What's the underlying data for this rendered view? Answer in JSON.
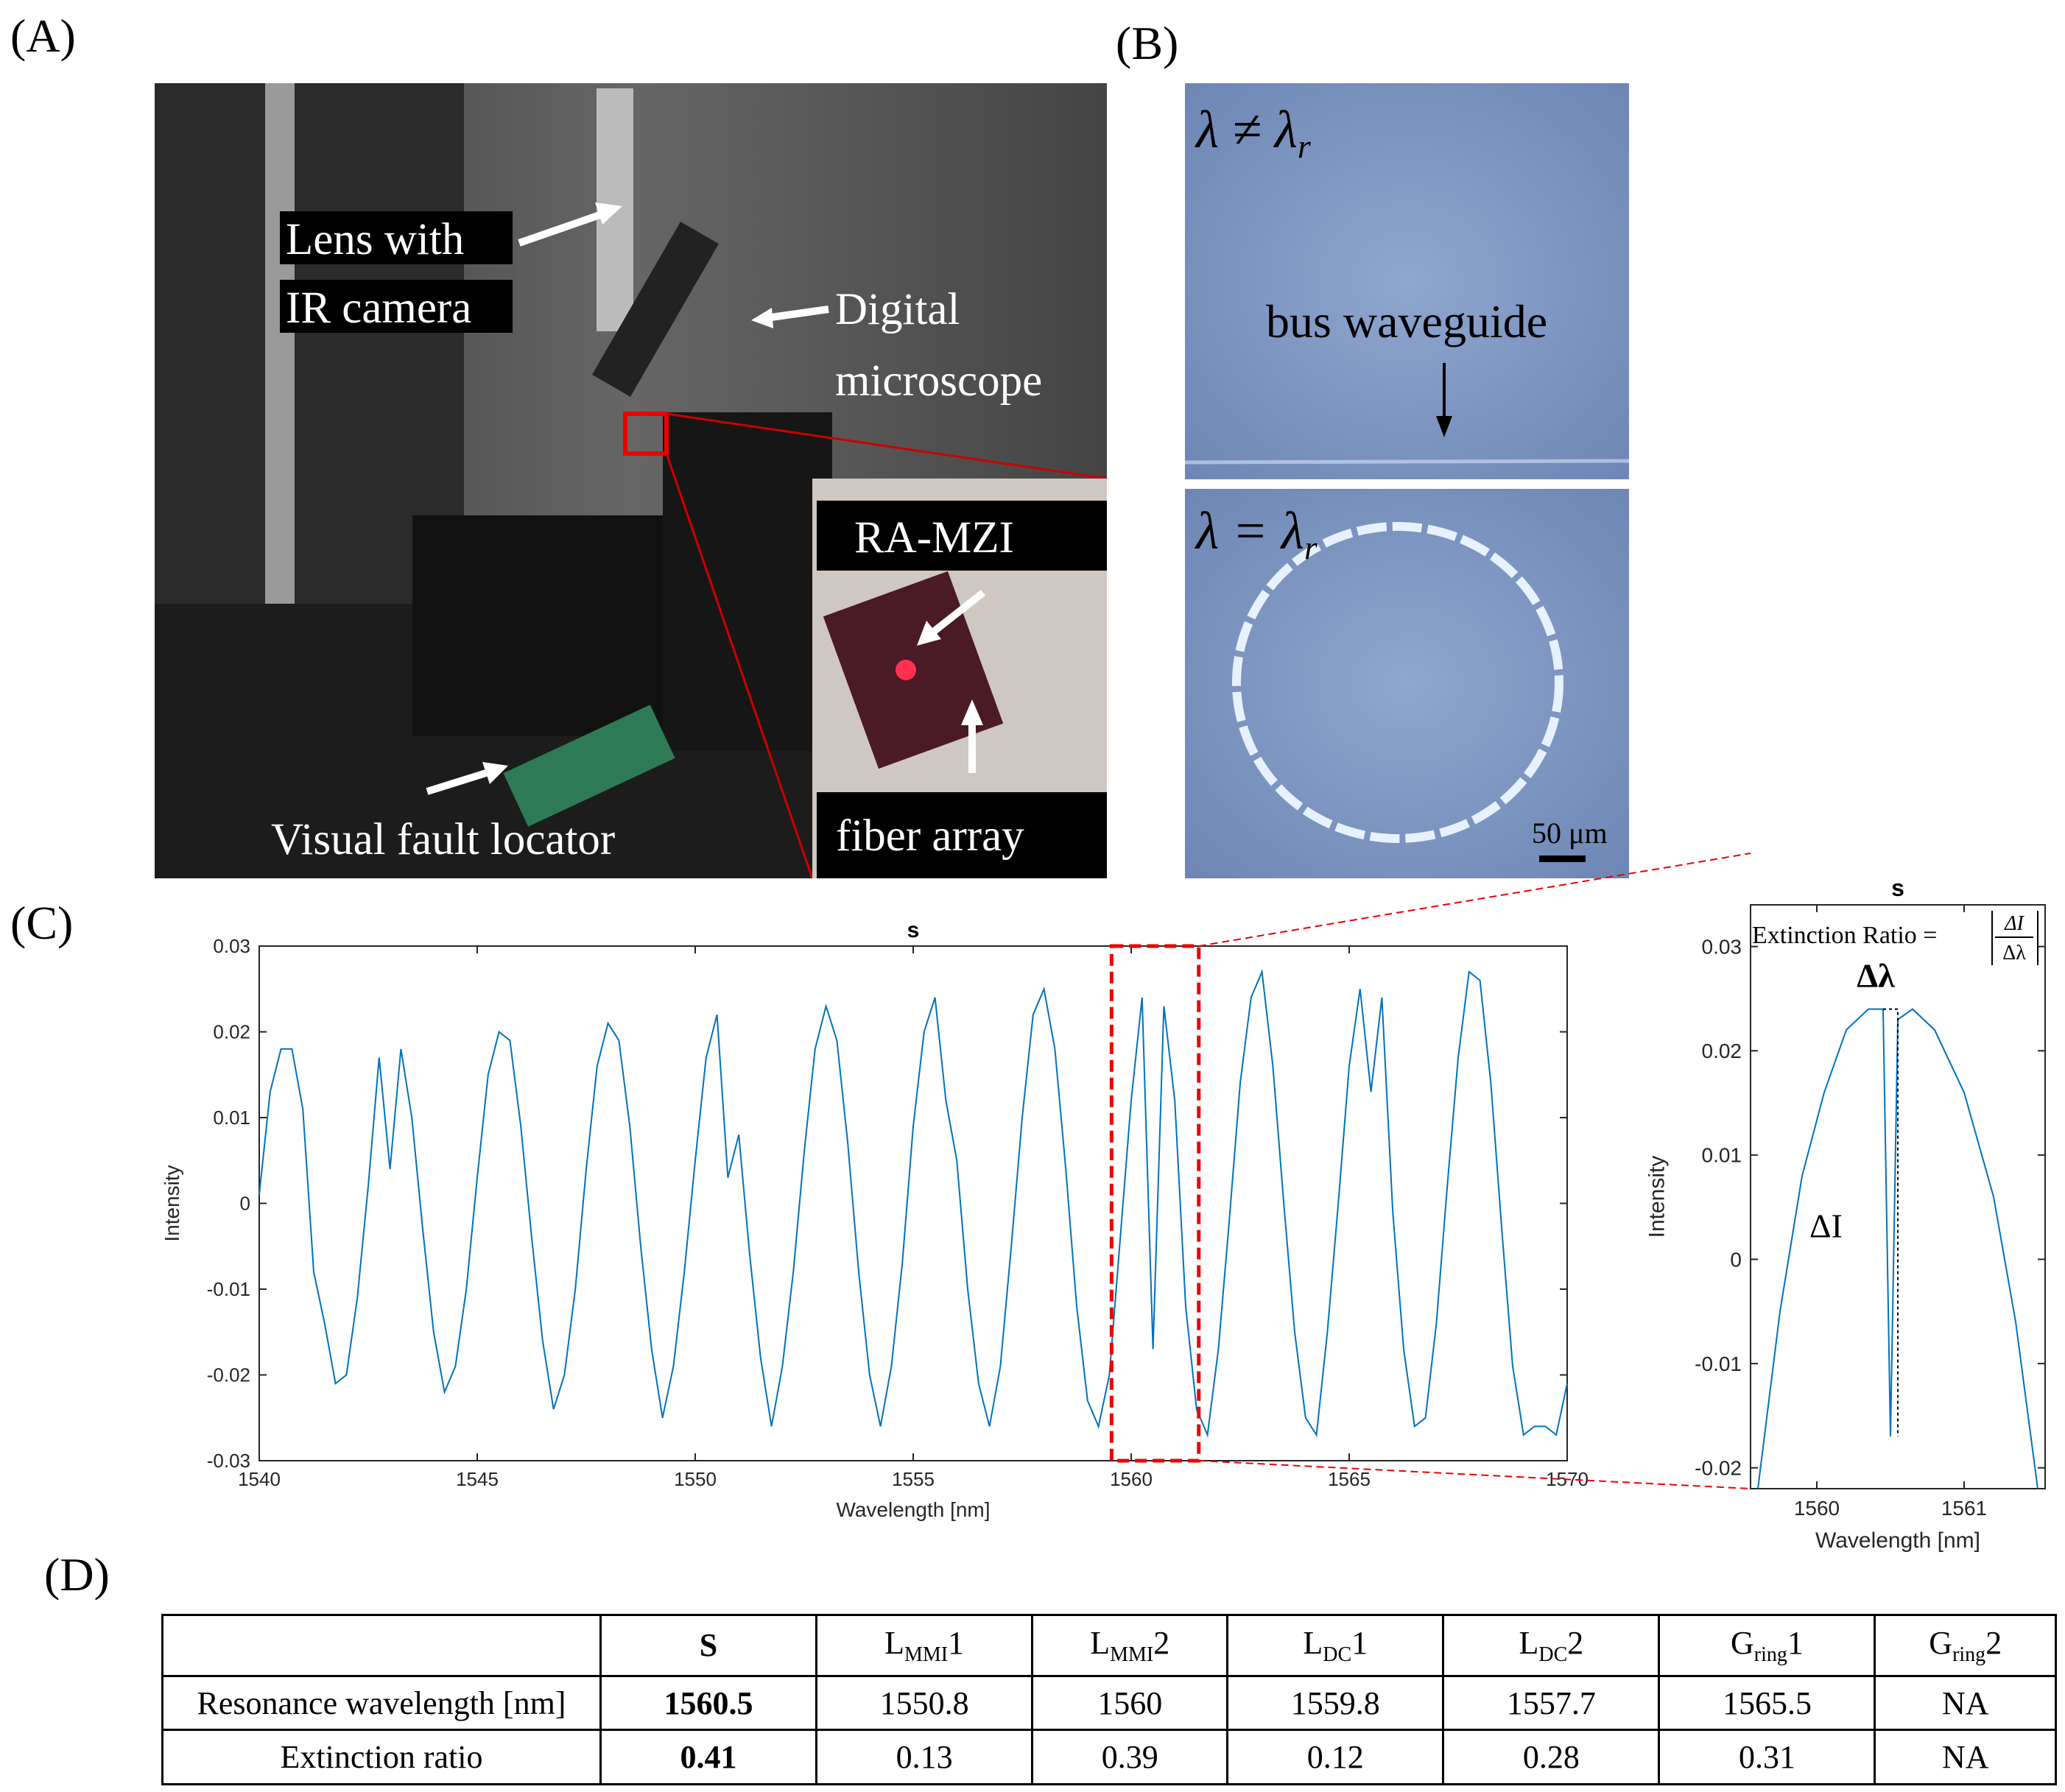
{
  "panel_labels": [
    "(A)",
    "(B)",
    "(C)",
    "(D)"
  ],
  "photo_a": {
    "lens_label": [
      "Lens with",
      "IR camera"
    ],
    "microscope_label": [
      "Digital",
      "microscope"
    ],
    "inset_labels": [
      "RA-MZI",
      "fiber array"
    ],
    "locator_label": "Visual fault locator"
  },
  "photo_b": {
    "top_label": {
      "text": "λ ≠ λ",
      "sub": "r"
    },
    "waveguide_label": "bus waveguide",
    "bottom_label": {
      "text": "λ = λ",
      "sub": "r"
    },
    "scale_label": "50 μm"
  },
  "chart_data": [
    {
      "type": "line",
      "title": "s",
      "xlabel": "Wavelength [nm]",
      "ylabel": "Intensity",
      "color": "#0072bd",
      "x": [
        1540,
        1540.25,
        1540.5,
        1540.75,
        1541,
        1541.25,
        1541.5,
        1541.75,
        1542,
        1542.25,
        1542.5,
        1542.75,
        1543,
        1543.25,
        1543.5,
        1543.75,
        1544,
        1544.25,
        1544.5,
        1544.75,
        1545,
        1545.25,
        1545.5,
        1545.75,
        1546,
        1546.25,
        1546.5,
        1546.75,
        1547,
        1547.25,
        1547.5,
        1547.75,
        1548,
        1548.25,
        1548.5,
        1548.75,
        1549,
        1549.25,
        1549.5,
        1549.75,
        1550,
        1550.25,
        1550.5,
        1550.75,
        1551,
        1551.25,
        1551.5,
        1551.75,
        1552,
        1552.25,
        1552.5,
        1552.75,
        1553,
        1553.25,
        1553.5,
        1553.75,
        1554,
        1554.25,
        1554.5,
        1554.75,
        1555,
        1555.25,
        1555.5,
        1555.75,
        1556,
        1556.25,
        1556.5,
        1556.75,
        1557,
        1557.25,
        1557.5,
        1557.75,
        1558,
        1558.25,
        1558.5,
        1558.75,
        1559,
        1559.25,
        1559.5,
        1559.75,
        1560,
        1560.25,
        1560.5,
        1560.75,
        1561,
        1561.25,
        1561.5,
        1561.75,
        1562,
        1562.25,
        1562.5,
        1562.75,
        1563,
        1563.25,
        1563.5,
        1563.75,
        1564,
        1564.25,
        1564.5,
        1564.75,
        1565,
        1565.25,
        1565.5,
        1565.75,
        1566,
        1566.25,
        1566.5,
        1566.75,
        1567,
        1567.25,
        1567.5,
        1567.75,
        1568,
        1568.25,
        1568.5,
        1568.75,
        1569,
        1569.25,
        1569.5,
        1569.75,
        1570
      ],
      "values": [
        0.001,
        0.013,
        0.018,
        0.018,
        0.011,
        -0.008,
        -0.014,
        -0.021,
        -0.02,
        -0.011,
        0.002,
        0.017,
        0.004,
        0.018,
        0.01,
        -0.003,
        -0.015,
        -0.022,
        -0.019,
        -0.01,
        0.003,
        0.015,
        0.02,
        0.019,
        0.009,
        -0.004,
        -0.016,
        -0.024,
        -0.02,
        -0.01,
        0.004,
        0.016,
        0.021,
        0.019,
        0.009,
        -0.005,
        -0.017,
        -0.025,
        -0.019,
        -0.008,
        0.005,
        0.017,
        0.022,
        0.003,
        0.008,
        -0.006,
        -0.018,
        -0.026,
        -0.019,
        -0.008,
        0.006,
        0.018,
        0.023,
        0.019,
        0.007,
        -0.008,
        -0.02,
        -0.026,
        -0.019,
        -0.007,
        0.009,
        0.02,
        0.024,
        0.012,
        0.005,
        -0.01,
        -0.021,
        -0.026,
        -0.019,
        -0.005,
        0.01,
        0.022,
        0.025,
        0.018,
        0.004,
        -0.012,
        -0.023,
        -0.026,
        -0.02,
        -0.004,
        0.012,
        0.024,
        -0.017,
        0.023,
        0.012,
        -0.012,
        -0.024,
        -0.027,
        -0.017,
        -0.002,
        0.014,
        0.024,
        0.027,
        0.016,
        0.0,
        -0.015,
        -0.025,
        -0.027,
        -0.015,
        0.0,
        0.016,
        0.025,
        0.013,
        0.024,
        -0.001,
        -0.017,
        -0.026,
        -0.025,
        -0.014,
        0.002,
        0.017,
        0.027,
        0.026,
        0.014,
        -0.003,
        -0.019,
        -0.027,
        -0.026,
        -0.026,
        -0.027,
        -0.021
      ],
      "xlim": [
        1540,
        1570
      ],
      "xticks": [
        1540,
        1545,
        1550,
        1555,
        1560,
        1565,
        1570
      ],
      "ylim": [
        -0.03,
        0.03
      ],
      "yticks": [
        -0.03,
        -0.02,
        -0.01,
        0,
        0.01,
        0.02,
        0.03
      ]
    },
    {
      "type": "line",
      "title": "s",
      "xlabel": "Wavelength [nm]",
      "ylabel": "Intensity",
      "color": "#0072bd",
      "x": [
        1559.6,
        1559.75,
        1559.9,
        1560.05,
        1560.2,
        1560.35,
        1560.45,
        1560.5,
        1560.55,
        1560.65,
        1560.8,
        1561.0,
        1561.2,
        1561.35,
        1561.5
      ],
      "values": [
        -0.022,
        -0.005,
        0.008,
        0.016,
        0.022,
        0.024,
        0.024,
        -0.017,
        0.023,
        0.024,
        0.022,
        0.016,
        0.006,
        -0.006,
        -0.022
      ],
      "xlim": [
        1559.55,
        1561.55
      ],
      "xticks": [
        1560,
        1561
      ],
      "ylim": [
        -0.022,
        0.034
      ],
      "yticks": [
        -0.02,
        -0.01,
        0,
        0.01,
        0.02,
        0.03
      ],
      "formula": {
        "text": "Extinction Ratio =",
        "numerator": "ΔI",
        "denominator": "Δλ"
      },
      "annotations": [
        "Δλ",
        "ΔI"
      ]
    }
  ],
  "table": {
    "header": [
      {
        "main": "S"
      },
      {
        "main": "L",
        "sub": "MMI",
        "suffix": "1"
      },
      {
        "main": "L",
        "sub": "MMI",
        "suffix": "2"
      },
      {
        "main": "L",
        "sub": "DC",
        "suffix": "1"
      },
      {
        "main": "L",
        "sub": "DC",
        "suffix": "2"
      },
      {
        "main": "G",
        "sub": "ring",
        "suffix": "1"
      },
      {
        "main": "G",
        "sub": "ring",
        "suffix": "2"
      }
    ],
    "rows": [
      [
        "Resonance wavelength [nm]",
        "1560.5",
        "1550.8",
        "1560",
        "1559.8",
        "1557.7",
        "1565.5",
        "NA"
      ],
      [
        "Extinction ratio",
        "0.41",
        "0.13",
        "0.39",
        "0.12",
        "0.28",
        "0.31",
        "NA"
      ]
    ]
  }
}
